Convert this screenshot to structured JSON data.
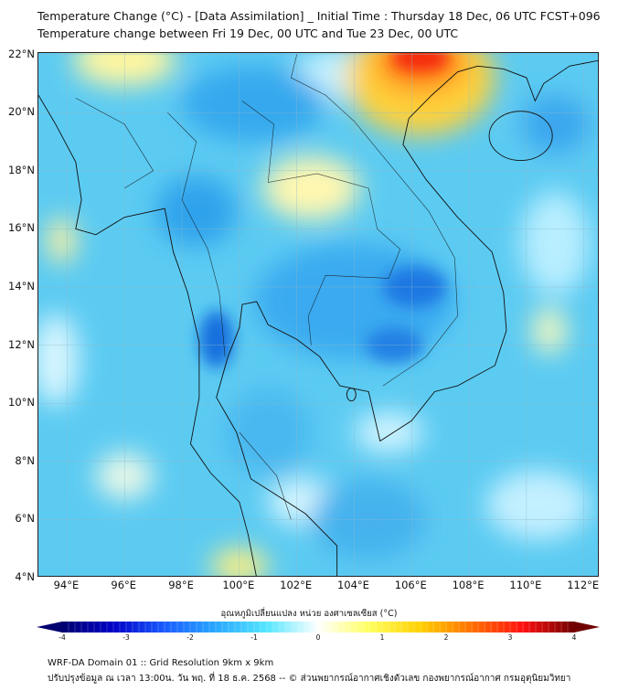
{
  "header": {
    "title_line1": "Temperature Change (°C) - [Data Assimilation] _ Initial Time : Thursday 18 Dec, 06 UTC FCST+096",
    "title_line2": "Temperature change between Fri 19 Dec, 00 UTC and Tue 23 Dec, 00 UTC"
  },
  "map": {
    "lat_labels": [
      "22°N",
      "20°N",
      "18°N",
      "16°N",
      "14°N",
      "12°N",
      "10°N",
      "8°N",
      "6°N",
      "4°N"
    ],
    "lon_labels": [
      "94°E",
      "96°E",
      "98°E",
      "100°E",
      "102°E",
      "104°E",
      "106°E",
      "108°E",
      "110°E",
      "112°E"
    ],
    "lon_range": [
      93,
      112.55
    ],
    "lat_range": [
      4,
      22.05
    ]
  },
  "colorbar": {
    "title": "อุณหภูมิเปลี่ยนแปลง หน่วย องศาเซลเซียส (°C)",
    "ticks": [
      "-4",
      "-3",
      "-2",
      "-1",
      "0",
      "1",
      "2",
      "3",
      "4"
    ],
    "range": [
      -4,
      4
    ],
    "colors": [
      "#000070",
      "#0000c8",
      "#1a5cff",
      "#2aa8ff",
      "#55e6ff",
      "#ffffff",
      "#ffff60",
      "#ffd000",
      "#ff7000",
      "#ff1010",
      "#700000"
    ]
  },
  "footer": {
    "line1": "WRF-DA Domain 01 :: Grid Resolution 9km x 9km",
    "line2": "ปรับปรุงข้อมูล ณ เวลา 13:00น. วัน พฤ. ที่ 18 ธ.ค. 2568 -- © ส่วนพยากรณ์อากาศเชิงตัวเลข กองพยากรณ์อากาศ กรมอุตุนิยมวิทยา"
  }
}
